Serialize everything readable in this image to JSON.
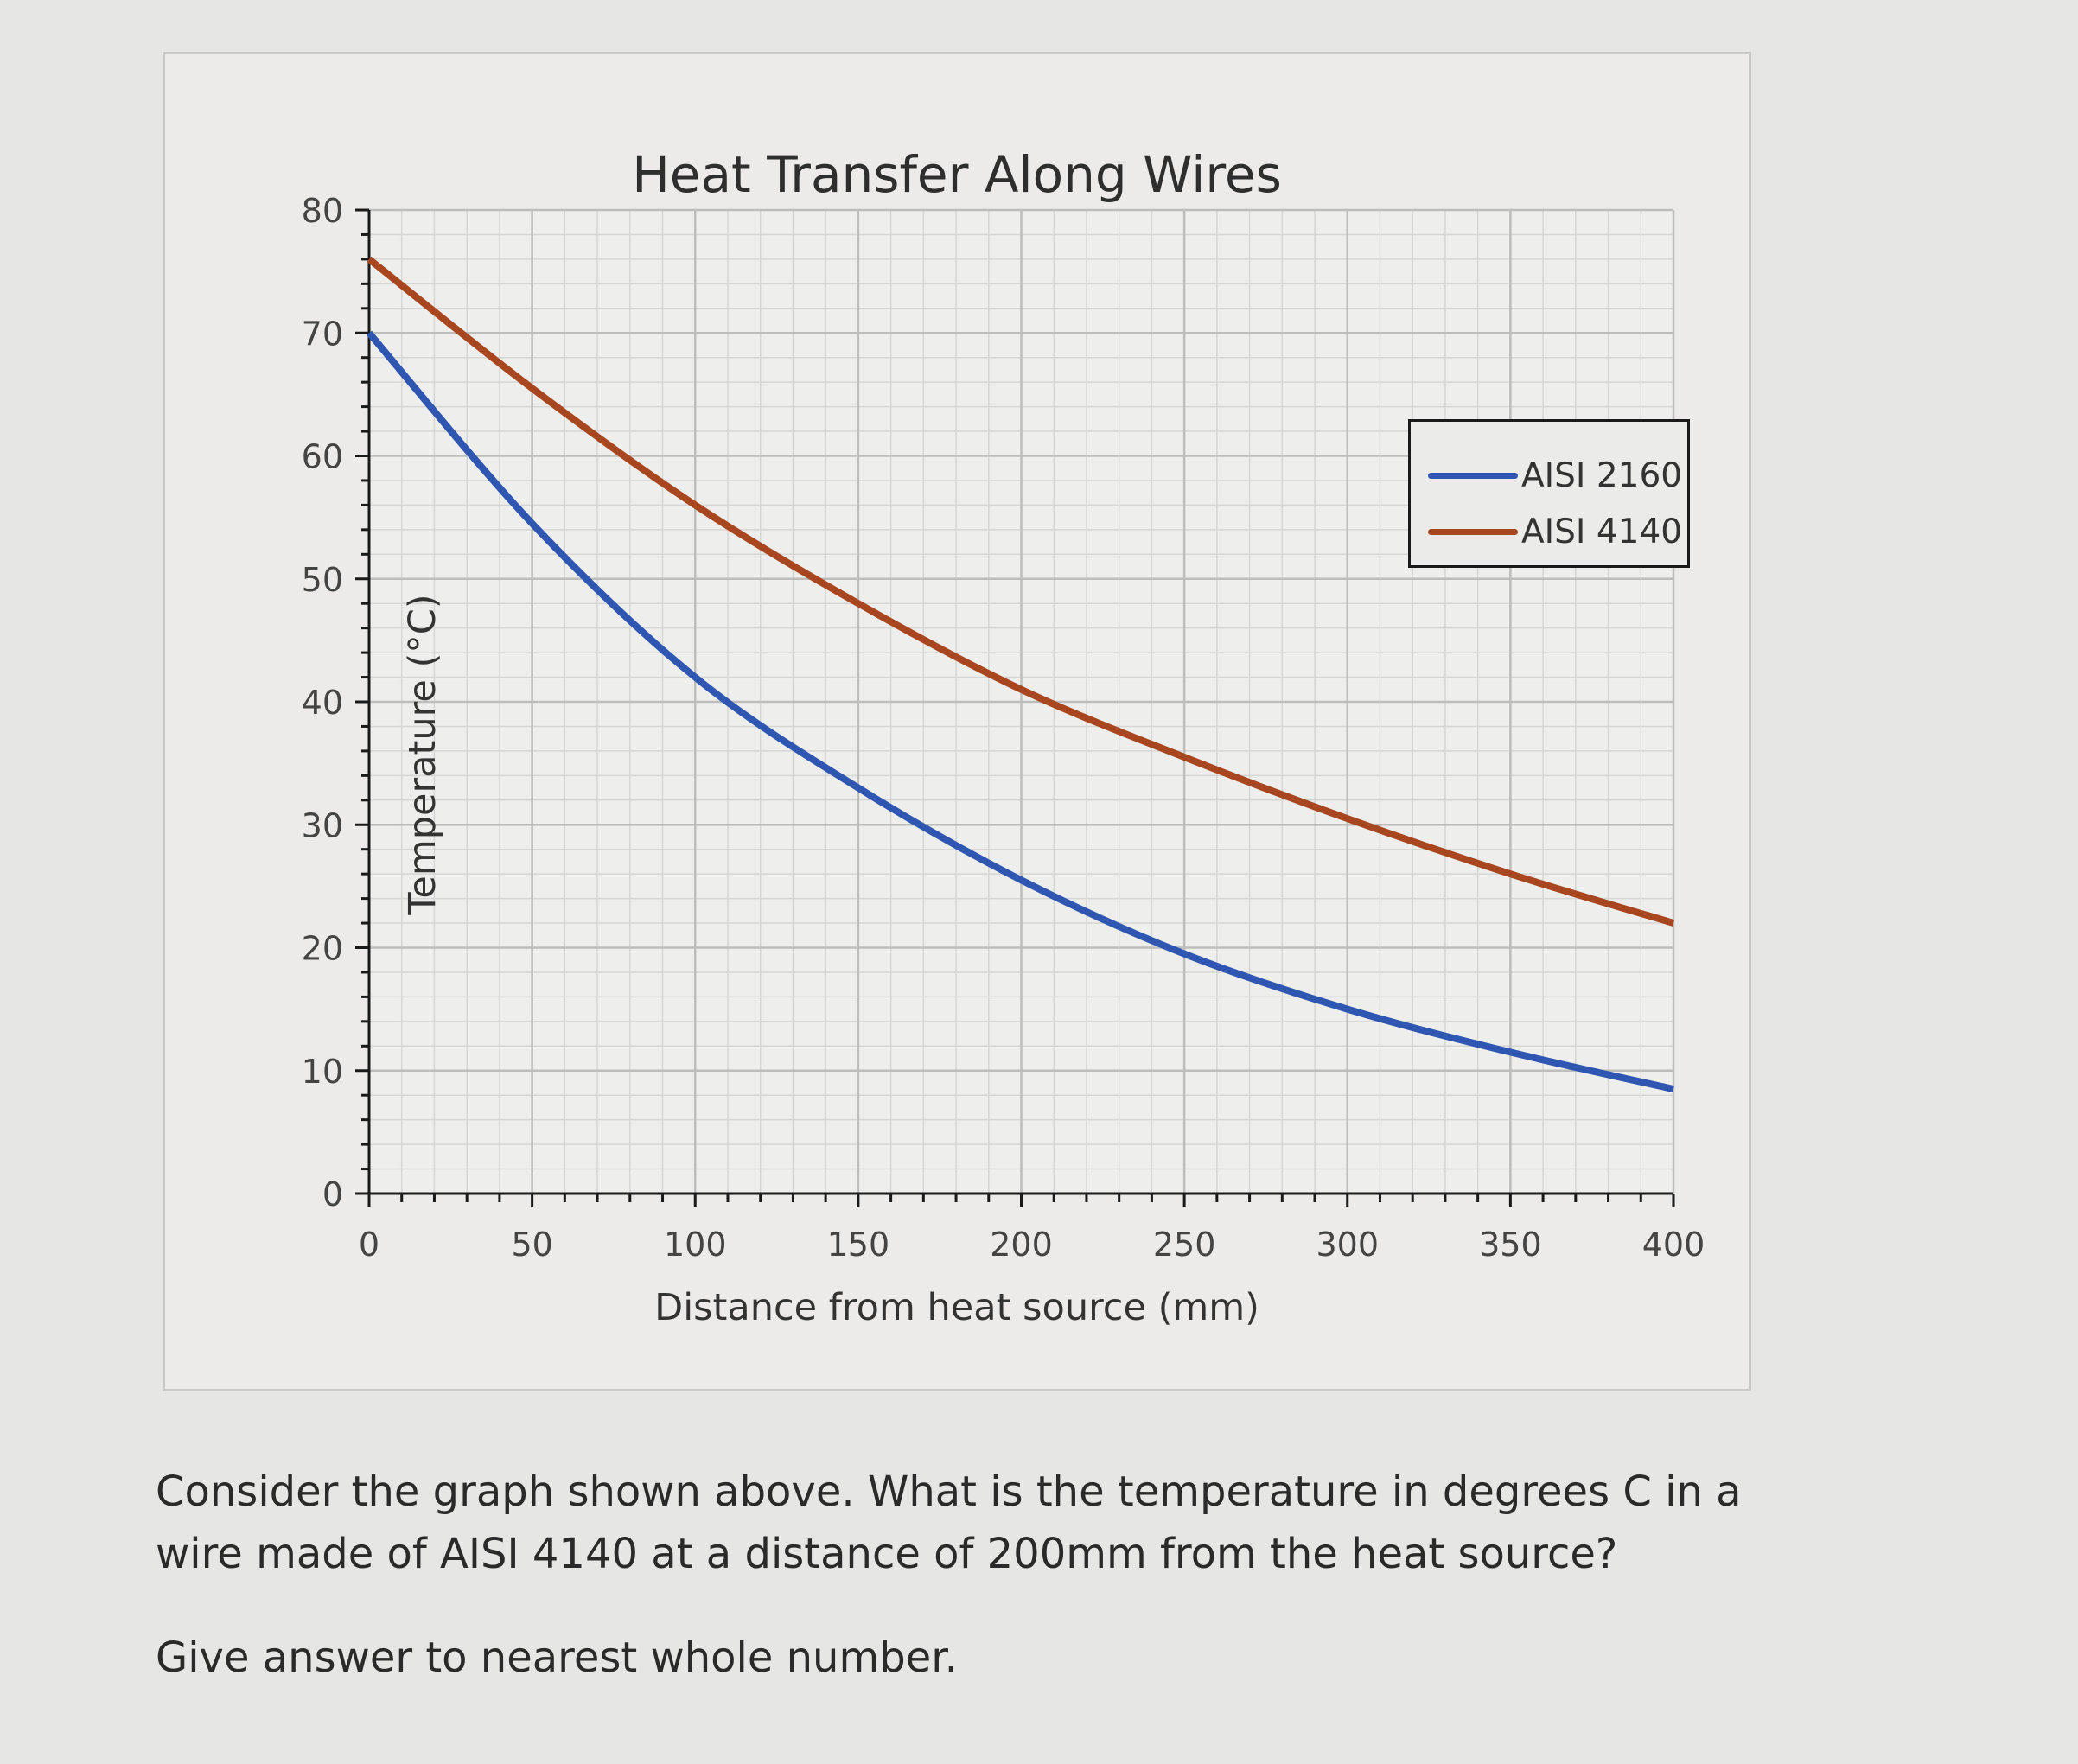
{
  "chart_data": {
    "type": "line",
    "title": "Heat Transfer Along Wires",
    "xlabel": "Distance from heat source (mm)",
    "ylabel": "Temperature (°C)",
    "x": [
      0,
      50,
      100,
      150,
      200,
      250,
      300,
      350,
      400
    ],
    "xlim": [
      0,
      400
    ],
    "ylim": [
      0,
      80
    ],
    "x_ticks": [
      "0",
      "50",
      "100",
      "150",
      "200",
      "250",
      "300",
      "350",
      "400"
    ],
    "y_ticks": [
      "0",
      "10",
      "20",
      "30",
      "40",
      "50",
      "60",
      "70",
      "80"
    ],
    "grid": true,
    "legend_position": "upper right",
    "series": [
      {
        "name": "AISI 2160",
        "color": "#2f56b0",
        "values": [
          70,
          54.5,
          42,
          33,
          25.5,
          19.5,
          15,
          11.5,
          8.5
        ]
      },
      {
        "name": "AISI 4140",
        "color": "#a8461f",
        "values": [
          76,
          65.5,
          56,
          48,
          41,
          35.5,
          30.5,
          26,
          22
        ]
      }
    ]
  },
  "question": {
    "text": "Consider the graph shown above. What is the temperature in degrees C in a wire made of AISI 4140 at a distance of 200mm from the heat source?",
    "note": "Give answer to nearest whole number."
  }
}
